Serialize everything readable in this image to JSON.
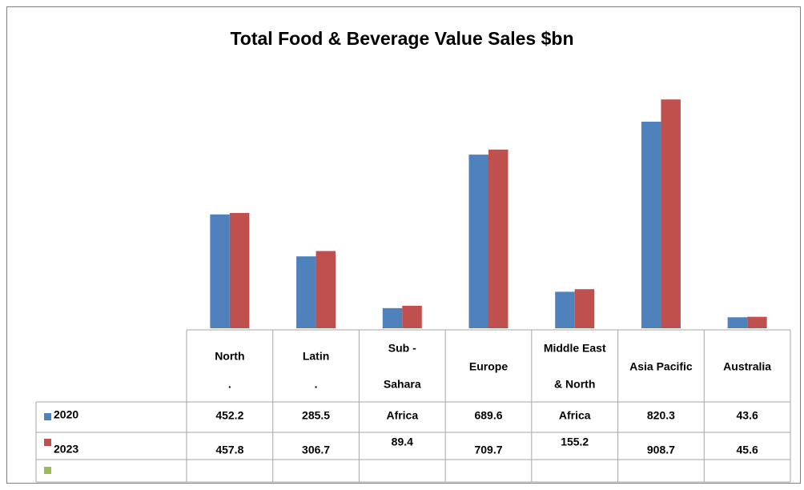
{
  "chart_data": {
    "type": "bar",
    "title": "Total Food & Beverage Value Sales $bn",
    "categories": [
      [
        "North",
        "."
      ],
      [
        "Latin",
        "."
      ],
      [
        "Sub -",
        "Sahara",
        "Africa"
      ],
      [
        "Europe"
      ],
      [
        "Middle East",
        "& North",
        "Africa"
      ],
      [
        "Asia Pacific"
      ],
      [
        "Australia"
      ]
    ],
    "series": [
      {
        "name": "2020",
        "color": "#4f81bd",
        "values": [
          452.2,
          285.5,
          80,
          689.6,
          145,
          820.3,
          43.6
        ],
        "value_labels": [
          "452.2",
          "285.5",
          null,
          "689.6",
          null,
          "820.3",
          "43.6"
        ]
      },
      {
        "name": "2023",
        "color": "#c0504d",
        "values": [
          457.8,
          306.7,
          89.4,
          709.7,
          155.2,
          908.7,
          45.6
        ]
      },
      {
        "color": "#9bbb59",
        "values": [
          null,
          null,
          null,
          null,
          null,
          null,
          null
        ]
      }
    ],
    "ylim": [
      0,
      1000
    ]
  }
}
